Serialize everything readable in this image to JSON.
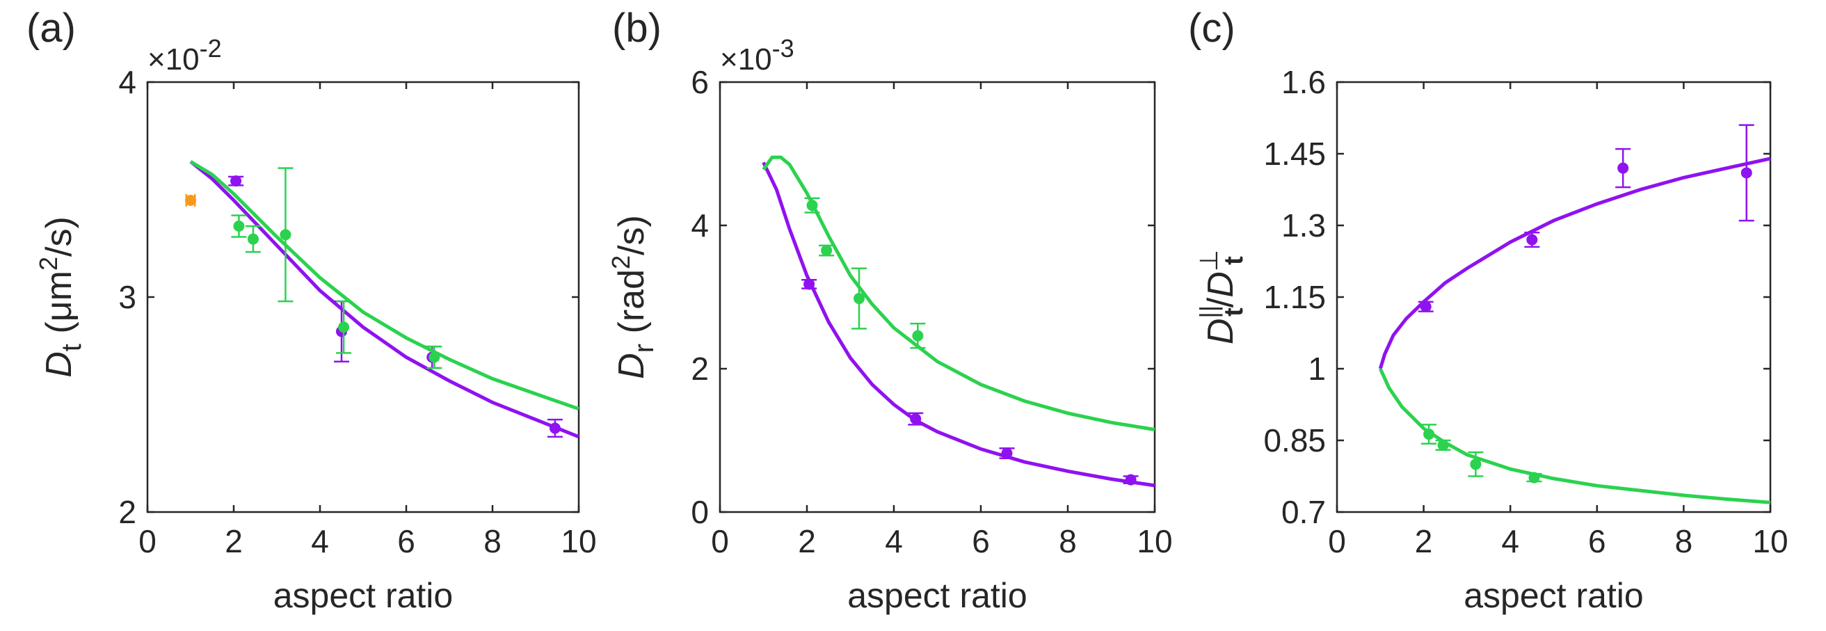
{
  "chart_data": [
    {
      "panel": "(a)",
      "type": "scatter",
      "xlabel": "aspect ratio",
      "ylabel": {
        "main": "D",
        "sub": "t",
        "unit_pre": " (μm",
        "unit_sup": "2",
        "unit_post": "/s)"
      },
      "exponent": {
        "base": "×10",
        "power": "-2"
      },
      "xlim": [
        0,
        10
      ],
      "ylim": [
        2,
        4
      ],
      "xticks": [
        0,
        2,
        4,
        6,
        8,
        10
      ],
      "yticks": [
        2,
        3,
        4
      ],
      "xtick_labels": [
        "0",
        "2",
        "4",
        "6",
        "8",
        "10"
      ],
      "ytick_labels": [
        "2",
        "3",
        "4"
      ],
      "series": [
        {
          "name": "purple",
          "color": "#8f12f0",
          "points": [
            {
              "x": 2.05,
              "y": 3.54,
              "err": 0.02
            },
            {
              "x": 4.5,
              "y": 2.84,
              "err": 0.14
            },
            {
              "x": 6.6,
              "y": 2.72,
              "err": 0.05
            },
            {
              "x": 9.45,
              "y": 2.39,
              "err": 0.04
            }
          ],
          "curve": [
            [
              1.0,
              3.63
            ],
            [
              1.5,
              3.55
            ],
            [
              2,
              3.45
            ],
            [
              3,
              3.24
            ],
            [
              4,
              3.03
            ],
            [
              5,
              2.86
            ],
            [
              6,
              2.72
            ],
            [
              7,
              2.61
            ],
            [
              8,
              2.51
            ],
            [
              9,
              2.43
            ],
            [
              10,
              2.35
            ]
          ]
        },
        {
          "name": "green",
          "color": "#2bd24e",
          "points": [
            {
              "x": 2.12,
              "y": 3.33,
              "err": 0.05
            },
            {
              "x": 2.45,
              "y": 3.27,
              "err": 0.06
            },
            {
              "x": 3.2,
              "y": 3.29,
              "err": 0.31
            },
            {
              "x": 4.55,
              "y": 2.86,
              "err": 0.12
            },
            {
              "x": 6.65,
              "y": 2.72,
              "err": 0.05
            }
          ],
          "curve": [
            [
              1.0,
              3.63
            ],
            [
              1.5,
              3.57
            ],
            [
              2,
              3.48
            ],
            [
              3,
              3.28
            ],
            [
              4,
              3.09
            ],
            [
              5,
              2.93
            ],
            [
              6,
              2.81
            ],
            [
              7,
              2.71
            ],
            [
              8,
              2.62
            ],
            [
              9,
              2.55
            ],
            [
              10,
              2.48
            ]
          ]
        },
        {
          "name": "orange",
          "color": "#f79a1c",
          "points": [
            {
              "x": 1.0,
              "y": 3.45,
              "err": 0.0,
              "xerr": 0.1
            }
          ]
        }
      ]
    },
    {
      "panel": "(b)",
      "type": "scatter",
      "xlabel": "aspect ratio",
      "ylabel": {
        "main": "D",
        "sub": "r",
        "unit_pre": " (rad",
        "unit_sup": "2",
        "unit_post": "/s)"
      },
      "exponent": {
        "base": "×10",
        "power": "-3"
      },
      "xlim": [
        0,
        10
      ],
      "ylim": [
        0,
        6
      ],
      "xticks": [
        0,
        2,
        4,
        6,
        8,
        10
      ],
      "yticks": [
        0,
        2,
        4,
        6
      ],
      "xtick_labels": [
        "0",
        "2",
        "4",
        "6",
        "8",
        "10"
      ],
      "ytick_labels": [
        "0",
        "2",
        "4",
        "6"
      ],
      "series": [
        {
          "name": "purple",
          "color": "#8f12f0",
          "points": [
            {
              "x": 2.05,
              "y": 3.18,
              "err": 0.06
            },
            {
              "x": 4.5,
              "y": 1.3,
              "err": 0.08
            },
            {
              "x": 6.6,
              "y": 0.82,
              "err": 0.07
            },
            {
              "x": 9.45,
              "y": 0.45,
              "err": 0.05
            }
          ],
          "curve": [
            [
              1.0,
              4.88
            ],
            [
              1.3,
              4.5
            ],
            [
              1.6,
              3.95
            ],
            [
              2,
              3.3
            ],
            [
              2.5,
              2.65
            ],
            [
              3,
              2.15
            ],
            [
              3.5,
              1.78
            ],
            [
              4,
              1.5
            ],
            [
              4.5,
              1.28
            ],
            [
              5,
              1.12
            ],
            [
              6,
              0.88
            ],
            [
              7,
              0.7
            ],
            [
              8,
              0.57
            ],
            [
              9,
              0.46
            ],
            [
              10,
              0.37
            ]
          ]
        },
        {
          "name": "green",
          "color": "#2bd24e",
          "points": [
            {
              "x": 2.12,
              "y": 4.28,
              "err": 0.1
            },
            {
              "x": 2.45,
              "y": 3.65,
              "err": 0.07
            },
            {
              "x": 3.2,
              "y": 2.98,
              "err": 0.42
            },
            {
              "x": 4.55,
              "y": 2.46,
              "err": 0.17
            }
          ],
          "curve": [
            [
              1.0,
              4.78
            ],
            [
              1.2,
              4.95
            ],
            [
              1.4,
              4.95
            ],
            [
              1.6,
              4.85
            ],
            [
              2,
              4.45
            ],
            [
              2.5,
              3.85
            ],
            [
              3,
              3.3
            ],
            [
              3.5,
              2.9
            ],
            [
              4,
              2.57
            ],
            [
              5,
              2.1
            ],
            [
              6,
              1.78
            ],
            [
              7,
              1.55
            ],
            [
              8,
              1.38
            ],
            [
              9,
              1.25
            ],
            [
              10,
              1.15
            ]
          ]
        }
      ]
    },
    {
      "panel": "(c)",
      "type": "scatter",
      "xlabel": "aspect ratio",
      "ylabel": {
        "main": "D",
        "sub": "t",
        "sup": "||",
        "main2": "D",
        "sub2": "t",
        "sup2": "⊥"
      },
      "xlim": [
        0,
        10
      ],
      "ylim": [
        0.7,
        1.6
      ],
      "xticks": [
        0,
        2,
        4,
        6,
        8,
        10
      ],
      "yticks": [
        0.7,
        0.85,
        1,
        1.15,
        1.3,
        1.45,
        1.6
      ],
      "xtick_labels": [
        "0",
        "2",
        "4",
        "6",
        "8",
        "10"
      ],
      "ytick_labels": [
        "0.7",
        "0.85",
        "1",
        "1.15",
        "1.3",
        "1.45",
        "1.6"
      ],
      "series": [
        {
          "name": "purple",
          "color": "#8f12f0",
          "points": [
            {
              "x": 2.05,
              "y": 1.13,
              "err": 0.01
            },
            {
              "x": 4.5,
              "y": 1.27,
              "err": 0.015
            },
            {
              "x": 6.6,
              "y": 1.42,
              "err": 0.04
            },
            {
              "x": 9.45,
              "y": 1.41,
              "err": 0.1
            }
          ],
          "curve": [
            [
              1.0,
              1.0
            ],
            [
              1.1,
              1.03
            ],
            [
              1.3,
              1.07
            ],
            [
              1.6,
              1.105
            ],
            [
              2,
              1.14
            ],
            [
              2.5,
              1.18
            ],
            [
              3,
              1.21
            ],
            [
              4,
              1.265
            ],
            [
              5,
              1.31
            ],
            [
              6,
              1.345
            ],
            [
              7,
              1.375
            ],
            [
              8,
              1.4
            ],
            [
              9,
              1.42
            ],
            [
              10,
              1.44
            ]
          ]
        },
        {
          "name": "green",
          "color": "#2bd24e",
          "points": [
            {
              "x": 2.12,
              "y": 0.863,
              "err": 0.02
            },
            {
              "x": 2.45,
              "y": 0.84,
              "err": 0.01
            },
            {
              "x": 3.2,
              "y": 0.8,
              "err": 0.025
            },
            {
              "x": 4.55,
              "y": 0.772,
              "err": 0.008
            }
          ],
          "curve": [
            [
              1.0,
              1.0
            ],
            [
              1.2,
              0.96
            ],
            [
              1.5,
              0.92
            ],
            [
              2,
              0.875
            ],
            [
              2.5,
              0.845
            ],
            [
              3,
              0.82
            ],
            [
              4,
              0.79
            ],
            [
              5,
              0.77
            ],
            [
              6,
              0.755
            ],
            [
              7,
              0.745
            ],
            [
              8,
              0.735
            ],
            [
              9,
              0.727
            ],
            [
              10,
              0.72
            ]
          ]
        }
      ]
    }
  ]
}
